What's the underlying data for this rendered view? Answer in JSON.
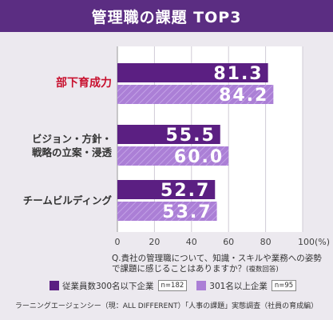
{
  "header": {
    "title": "管理職の課題 TOP3"
  },
  "chart_data": {
    "type": "bar",
    "orientation": "horizontal",
    "categories": [
      "部下育成力",
      "ビジョン・方針・戦略の立案・浸透",
      "チームビルディング"
    ],
    "category_lines": [
      [
        "部下育成力"
      ],
      [
        "ビジョン・方針・",
        "戦略の立案・浸透"
      ],
      [
        "チームビルディング"
      ]
    ],
    "highlight_category": 0,
    "series": [
      {
        "name": "従業員数300名以下企業",
        "n": "n=182",
        "color": "#5b1f82",
        "values": [
          81.3,
          55.5,
          52.7
        ],
        "labels": [
          "81.3",
          "55.5",
          "52.7"
        ]
      },
      {
        "name": "301名以上企業",
        "n": "n=95",
        "color": "#ab7fd6",
        "values": [
          84.2,
          60.0,
          53.7
        ],
        "labels": [
          "84.2",
          "60.0",
          "53.7"
        ]
      }
    ],
    "xlim": [
      0,
      100
    ],
    "xticks": [
      0,
      20,
      40,
      60,
      80,
      100
    ],
    "xtick_labels": [
      "0",
      "20",
      "40",
      "60",
      "80",
      "100(%)"
    ],
    "grid": true
  },
  "question": {
    "text": "Q.貴社の管理職について、知識・スキルや業務への姿勢で課題に感じることはありますか？",
    "note": "(複数回答)"
  },
  "legend": {
    "items": [
      {
        "label": "従業員数300名以下企業",
        "n": "n=182"
      },
      {
        "label": "301名以上企業",
        "n": "n=95"
      }
    ]
  },
  "source": "ラーニングエージェンシー（現：ALL DIFFERENT）「人事の課題」実態調査（社員の育成編）"
}
